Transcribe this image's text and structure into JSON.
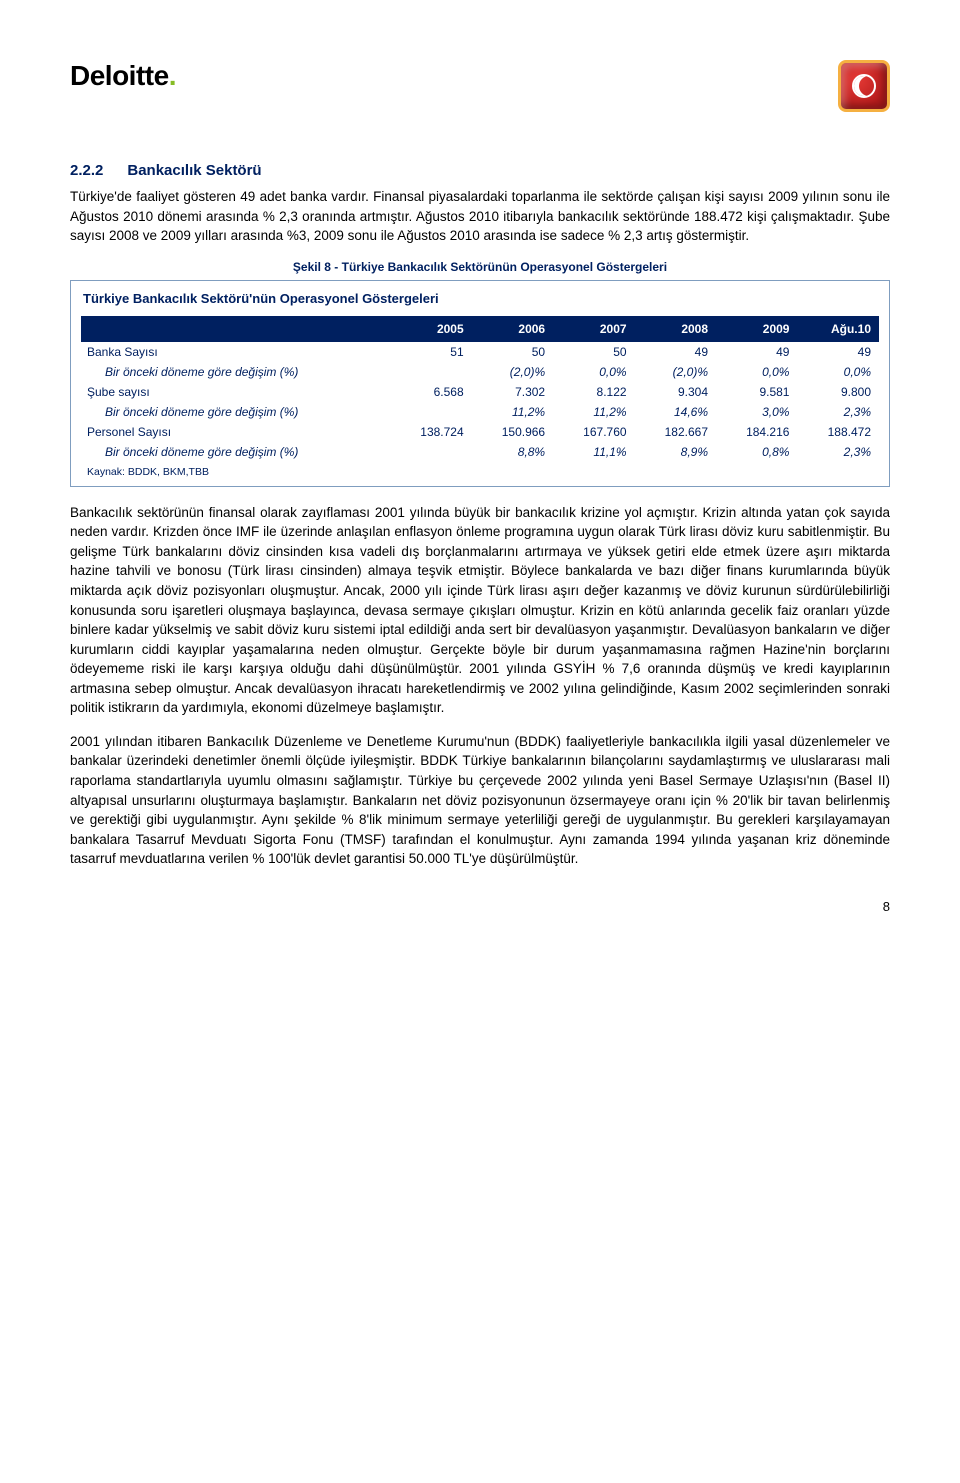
{
  "logo": {
    "text": "Deloitte",
    "dot_color": "#86bc25"
  },
  "heading": {
    "number": "2.2.2",
    "title": "Bankacılık Sektörü"
  },
  "paragraphs": {
    "p1": "Türkiye'de faaliyet gösteren 49 adet banka vardır. Finansal piyasalardaki toparlanma ile sektörde çalışan kişi sayısı 2009 yılının sonu ile Ağustos 2010 dönemi arasında % 2,3 oranında artmıştır. Ağustos 2010 itibarıyla bankacılık sektöründe 188.472 kişi çalışmaktadır. Şube sayısı 2008 ve 2009 yılları arasında %3, 2009 sonu ile Ağustos 2010 arasında ise sadece % 2,3 artış göstermiştir.",
    "p2": "Bankacılık sektörünün finansal olarak zayıflaması 2001 yılında büyük bir bankacılık krizine yol açmıştır. Krizin altında yatan çok sayıda neden vardır. Krizden önce IMF ile üzerinde anlaşılan enflasyon önleme programına uygun olarak Türk lirası döviz kuru sabitlenmiştir. Bu gelişme Türk bankalarını döviz cinsinden kısa vadeli dış borçlanmalarını artırmaya ve yüksek getiri elde etmek üzere aşırı miktarda hazine tahvili ve bonosu (Türk lirası cinsinden) almaya teşvik etmiştir. Böylece bankalarda ve bazı diğer finans kurumlarında büyük miktarda açık döviz pozisyonları oluşmuştur. Ancak, 2000 yılı içinde Türk lirası aşırı değer kazanmış ve döviz kurunun sürdürülebilirliği konusunda soru işaretleri oluşmaya başlayınca, devasa sermaye çıkışları olmuştur. Krizin en kötü anlarında gecelik faiz oranları yüzde binlere kadar yükselmiş ve sabit döviz kuru sistemi iptal edildiği anda sert bir devalüasyon yaşanmıştır. Devalüasyon bankaların ve diğer kurumların ciddi kayıplar yaşamalarına neden olmuştur. Gerçekte böyle bir durum yaşanmamasına rağmen Hazine'nin borçlarını ödeyememe riski ile karşı karşıya olduğu dahi düşünülmüştür. 2001 yılında GSYİH % 7,6 oranında düşmüş ve kredi kayıplarının artmasına sebep olmuştur. Ancak devalüasyon ihracatı hareketlendirmiş ve 2002 yılına gelindiğinde, Kasım 2002 seçimlerinden sonraki politik istikrarın da yardımıyla, ekonomi düzelmeye başlamıştır.",
    "p3": "2001 yılından itibaren Bankacılık Düzenleme ve Denetleme Kurumu'nun (BDDK) faaliyetleriyle bankacılıkla ilgili yasal düzenlemeler ve bankalar üzerindeki denetimler önemli ölçüde iyileşmiştir. BDDK Türkiye bankalarının bilançolarını saydamlaştırmış ve uluslararası mali raporlama standartlarıyla uyumlu olmasını sağlamıştır. Türkiye bu çerçevede 2002 yılında yeni Basel Sermaye Uzlaşısı'nın (Basel II) altyapısal unsurlarını oluşturmaya başlamıştır. Bankaların net döviz pozisyonunun özsermayeye oranı için % 20'lik bir tavan belirlenmiş ve gerektiği gibi uygulanmıştır. Aynı şekilde % 8'lik minimum sermaye yeterliliği gereği de uygulanmıştır. Bu gerekleri karşılayamayan bankalara Tasarruf Mevduatı Sigorta Fonu (TMSF) tarafından el konulmuştur. Aynı zamanda 1994 yılında yaşanan kriz döneminde tasarruf mevduatlarına verilen % 100'lük devlet garantisi 50.000 TL'ye düşürülmüştür."
  },
  "figure_caption": "Şekil 8 - Türkiye Bankacılık Sektörünün Operasyonel Göstergeleri",
  "table": {
    "title": "Türkiye Bankacılık Sektörü'nün Operasyonel Göstergeleri",
    "header_bg": "#002060",
    "header_fg": "#ffffff",
    "text_color": "#002060",
    "border_color": "#7f9dbf",
    "columns": [
      "2005",
      "2006",
      "2007",
      "2008",
      "2009",
      "Ağu.10"
    ],
    "rows": [
      {
        "label": "Banka Sayısı",
        "values": [
          "51",
          "50",
          "50",
          "49",
          "49",
          "49"
        ],
        "sub": false
      },
      {
        "label": "Bir önceki döneme göre değişim (%)",
        "values": [
          "",
          "(2,0)%",
          "0,0%",
          "(2,0)%",
          "0,0%",
          "0,0%"
        ],
        "sub": true
      },
      {
        "label": "Şube sayısı",
        "values": [
          "6.568",
          "7.302",
          "8.122",
          "9.304",
          "9.581",
          "9.800"
        ],
        "sub": false
      },
      {
        "label": "Bir önceki döneme göre değişim (%)",
        "values": [
          "",
          "11,2%",
          "11,2%",
          "14,6%",
          "3,0%",
          "2,3%"
        ],
        "sub": true
      },
      {
        "label": "Personel Sayısı",
        "values": [
          "138.724",
          "150.966",
          "167.760",
          "182.667",
          "184.216",
          "188.472"
        ],
        "sub": false
      },
      {
        "label": "Bir önceki döneme göre değişim (%)",
        "values": [
          "",
          "8,8%",
          "11,1%",
          "8,9%",
          "0,8%",
          "2,3%"
        ],
        "sub": true
      }
    ],
    "source": "Kaynak: BDDK, BKM,TBB"
  },
  "page_number": "8"
}
